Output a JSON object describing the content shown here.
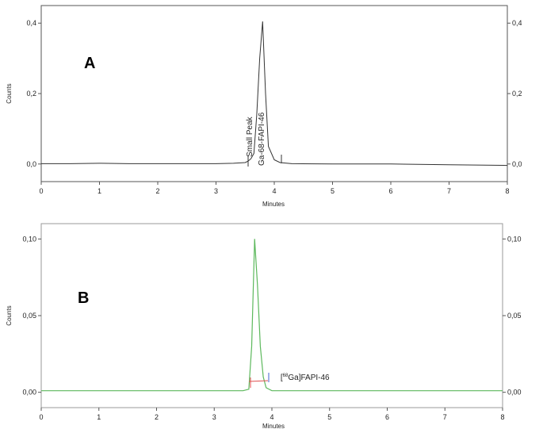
{
  "chart_data": [
    {
      "type": "line",
      "panel_label": "A",
      "xlabel": "Minutes",
      "ylabel": "Counts",
      "xlim": [
        0,
        8
      ],
      "ylim": [
        -0.05,
        0.45
      ],
      "x_ticks": [
        "0",
        "1",
        "2",
        "3",
        "4",
        "5",
        "6",
        "7",
        "8"
      ],
      "y_ticks": [
        "0,0",
        "0,2",
        "0,4"
      ],
      "y_tick_values": [
        0.0,
        0.2,
        0.4
      ],
      "right_axis": true,
      "series": [
        {
          "color": "#333333",
          "x": [
            0,
            0.5,
            1.0,
            1.5,
            2.0,
            2.5,
            3.0,
            3.3,
            3.5,
            3.55,
            3.6,
            3.65,
            3.7,
            3.75,
            3.8,
            3.85,
            3.9,
            4.0,
            4.1,
            4.3,
            5.0,
            6.0,
            7.0,
            8.0
          ],
          "y": [
            0.001,
            0.001,
            0.002,
            0.001,
            0.001,
            0.001,
            0.001,
            0.002,
            0.004,
            0.008,
            0.015,
            0.03,
            0.14,
            0.3,
            0.405,
            0.2,
            0.05,
            0.012,
            0.004,
            0.001,
            0.0,
            0.0,
            -0.002,
            -0.004
          ]
        }
      ],
      "annotations": [
        {
          "text": "Small Peak",
          "x": 3.62,
          "y": 0.02
        },
        {
          "text": "Ga-68-FAPI-46",
          "x": 3.82,
          "y": -0.005
        }
      ]
    },
    {
      "type": "line",
      "panel_label": "B",
      "xlabel": "Minutes",
      "ylabel": "Counts",
      "xlim": [
        0,
        8
      ],
      "ylim": [
        -0.01,
        0.11
      ],
      "x_ticks": [
        "0",
        "1",
        "2",
        "3",
        "4",
        "5",
        "6",
        "7",
        "8"
      ],
      "y_ticks": [
        "0,00",
        "0,05",
        "0,10"
      ],
      "y_tick_values": [
        0.0,
        0.05,
        0.1
      ],
      "right_axis": true,
      "series": [
        {
          "color": "#5cb85c",
          "x": [
            0,
            1,
            2,
            3,
            3.5,
            3.6,
            3.65,
            3.7,
            3.75,
            3.8,
            3.85,
            3.9,
            4.0,
            4.5,
            5,
            6,
            7,
            8
          ],
          "y": [
            0.001,
            0.001,
            0.001,
            0.001,
            0.001,
            0.002,
            0.03,
            0.1,
            0.07,
            0.03,
            0.01,
            0.003,
            0.001,
            0.001,
            0.001,
            0.001,
            0.001,
            0.001
          ]
        }
      ],
      "annotations": [
        {
          "text_sup": "68",
          "text_prefix": "[",
          "text_suffix": "Ga]FAPI-46",
          "x": 4.15,
          "y": 0.008
        }
      ]
    }
  ]
}
